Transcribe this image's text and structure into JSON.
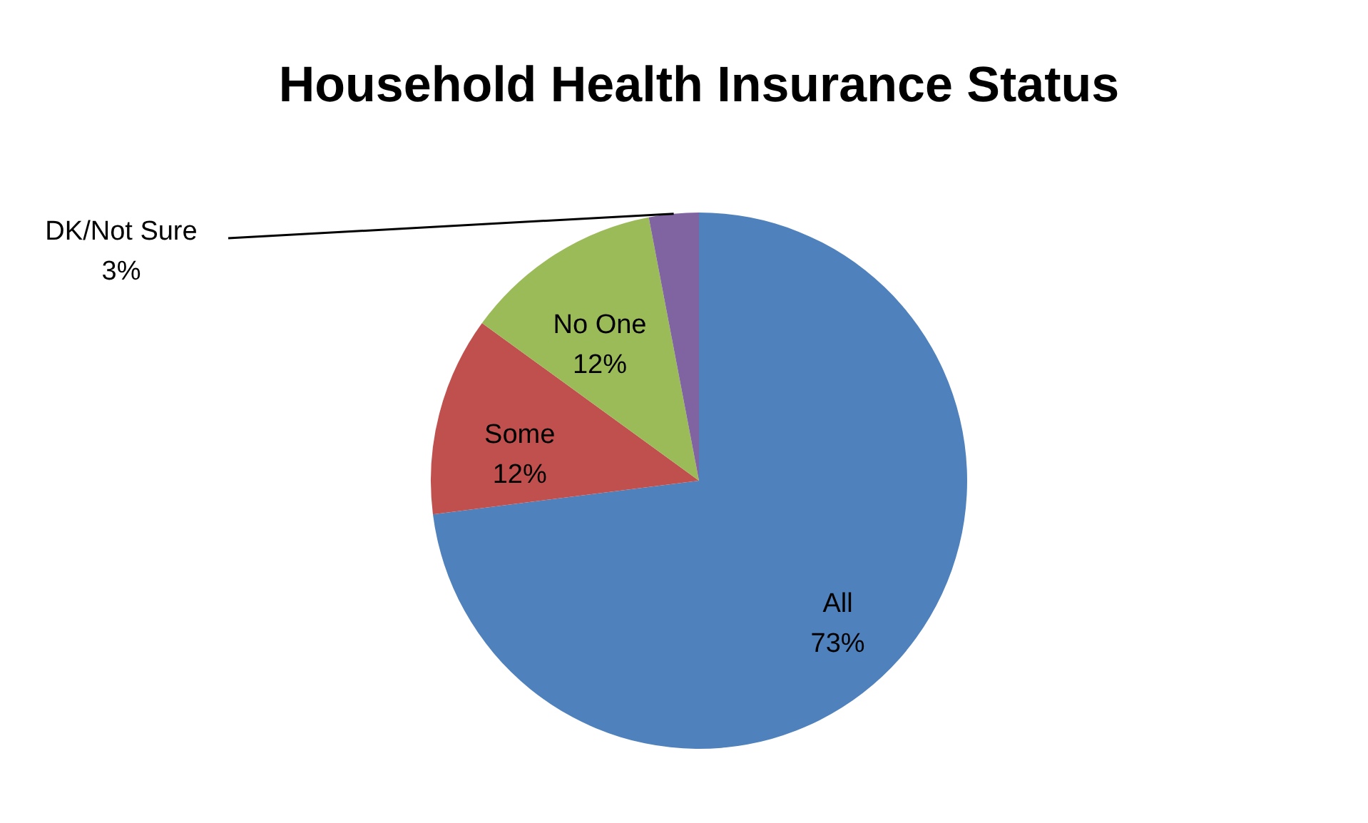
{
  "chart_data": {
    "type": "pie",
    "title": "Household Health Insurance  Status",
    "categories": [
      "All",
      "Some",
      "No One",
      "DK/Not Sure"
    ],
    "values": [
      73,
      12,
      12,
      3
    ],
    "value_labels": [
      "73%",
      "12%",
      "12%",
      "3%"
    ],
    "colors": [
      "#4f81bd",
      "#c0504d",
      "#9bbb59",
      "#8064a2"
    ]
  }
}
